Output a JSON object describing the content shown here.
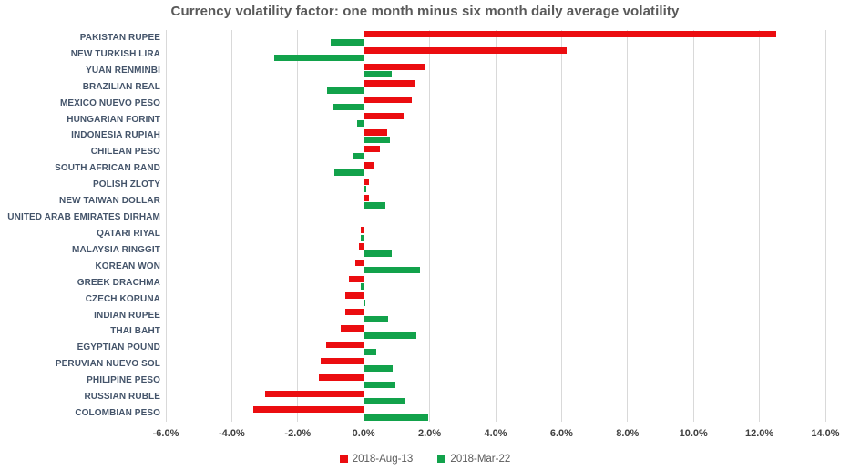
{
  "chart_data": {
    "type": "bar",
    "orientation": "horizontal",
    "title": "Currency volatility factor: one month minus six month daily average volatility",
    "categories": [
      "PAKISTAN RUPEE",
      "NEW TURKISH LIRA",
      "YUAN RENMINBI",
      "BRAZILIAN REAL",
      "MEXICO NUEVO PESO",
      "HUNGARIAN FORINT",
      "INDONESIA RUPIAH",
      "CHILEAN PESO",
      "SOUTH AFRICAN RAND",
      "POLISH ZLOTY",
      "NEW TAIWAN DOLLAR",
      "UNITED ARAB EMIRATES DIRHAM",
      "QATARI RIYAL",
      "MALAYSIA RINGGIT",
      "KOREAN WON",
      "GREEK DRACHMA",
      "CZECH KORUNA",
      "INDIAN RUPEE",
      "THAI BAHT",
      "EGYPTIAN POUND",
      "PERUVIAN NUEVO SOL",
      "PHILIPINE PESO",
      "RUSSIAN RUBLE",
      "COLOMBIAN PESO"
    ],
    "series": [
      {
        "name": "2018-Aug-13",
        "color": "#eb0d10",
        "values": [
          12.5,
          6.15,
          1.85,
          1.55,
          1.45,
          1.2,
          0.7,
          0.5,
          0.3,
          0.15,
          0.15,
          0,
          -0.08,
          -0.15,
          -0.25,
          -0.45,
          -0.55,
          -0.55,
          -0.7,
          -1.15,
          -1.3,
          -1.35,
          -3.0,
          -3.35
        ]
      },
      {
        "name": "2018-Mar-22",
        "color": "#12a24b",
        "values": [
          -1.0,
          -2.7,
          0.85,
          -1.1,
          -0.95,
          -0.2,
          0.8,
          -0.35,
          -0.9,
          0.08,
          0.65,
          0,
          -0.08,
          0.85,
          1.7,
          -0.1,
          0.05,
          0.75,
          1.6,
          0.37,
          0.87,
          0.95,
          1.25,
          1.95
        ]
      }
    ],
    "x_axis": {
      "min": -6,
      "max": 14,
      "tick_step": 2,
      "tick_labels": [
        "-6.0%",
        "-4.0%",
        "-2.0%",
        "0.0%",
        "2.0%",
        "4.0%",
        "6.0%",
        "8.0%",
        "10.0%",
        "12.0%",
        "14.0%"
      ],
      "unit": "%"
    },
    "grid": true,
    "legend_position": "bottom",
    "colors": {
      "title_text": "#595959",
      "category_text": "#44546a",
      "tick_text": "#404040",
      "gridline": "#d9d9d9",
      "background": "#ffffff"
    }
  }
}
